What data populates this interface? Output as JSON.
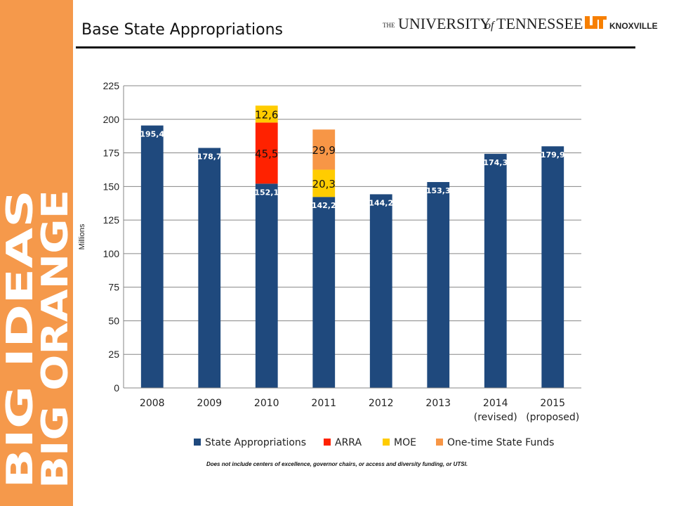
{
  "slide": {
    "title": "Base State Appropriations",
    "footnote": "Does not include centers of excellence, governor chairs, or access and diversity funding, or UTSI."
  },
  "logo": {
    "the": "THE",
    "university": "UNIVERSITY",
    "of": "of",
    "tennessee": "TENNESSEE",
    "knoxville": "KNOXVILLE"
  },
  "branding": {
    "line1": "BIG ORANGE",
    "line2": "BIG IDEAS",
    "band_color": "#f5994b"
  },
  "chart_data": {
    "type": "bar",
    "stacked": true,
    "categories": [
      "2008",
      "2009",
      "2010",
      "2011",
      "2012",
      "2013",
      "2014\n(revised)",
      "2015\n(proposed)"
    ],
    "series": [
      {
        "name": "State Appropriations",
        "color": "#1f497d",
        "values": [
          195.4,
          178.7,
          152.1,
          142.2,
          144.2,
          153.3,
          174.3,
          179.9
        ],
        "labels": [
          "195,4",
          "178,7",
          "152,1",
          "142,2",
          "144,2",
          "153,3",
          "174,3",
          "179,9"
        ]
      },
      {
        "name": "ARRA",
        "color": "#ff2200",
        "values": [
          0,
          0,
          45.5,
          0,
          0,
          0,
          0,
          0
        ],
        "labels": [
          "",
          "",
          "45,5",
          "",
          "",
          "",
          "",
          ""
        ]
      },
      {
        "name": "MOE",
        "color": "#ffcc00",
        "values": [
          0,
          0,
          12.6,
          20.3,
          0,
          0,
          0,
          0
        ],
        "labels": [
          "",
          "",
          "12,6",
          "20,3",
          "",
          "",
          "",
          ""
        ]
      },
      {
        "name": "One-time State Funds",
        "color": "#f79646",
        "values": [
          0,
          0,
          0,
          29.9,
          0,
          0,
          0,
          0
        ],
        "labels": [
          "",
          "",
          "",
          "29,9",
          "",
          "",
          "",
          ""
        ]
      }
    ],
    "ylabel": "Millions",
    "ylim": [
      0,
      225
    ],
    "yticks": [
      0,
      25,
      50,
      75,
      100,
      125,
      150,
      175,
      200,
      225
    ],
    "grid": true,
    "legend": "bottom"
  }
}
